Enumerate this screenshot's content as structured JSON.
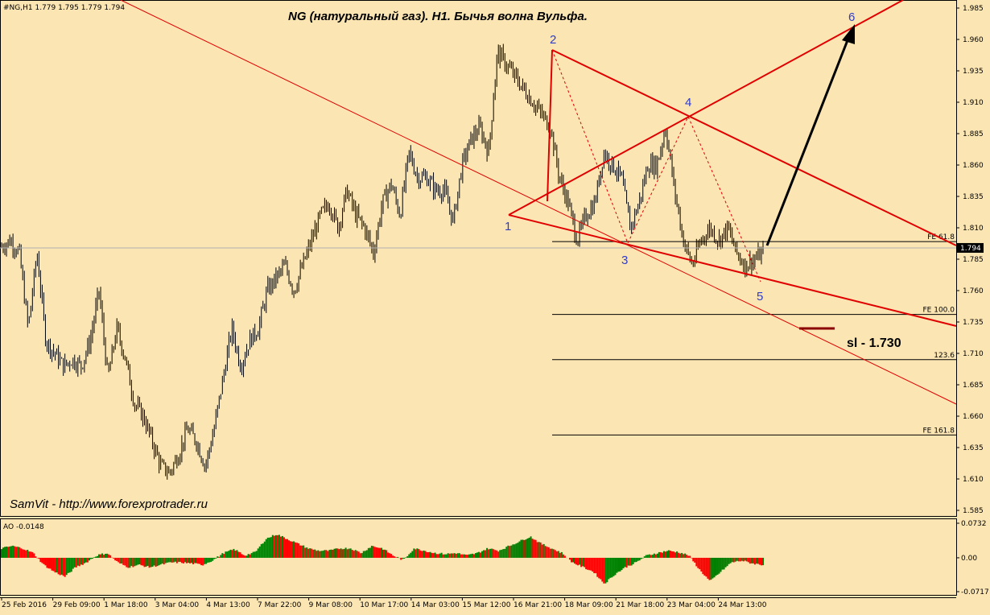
{
  "header": {
    "symbol_info": "#NG,H1  1.779 1.795 1.779 1.794",
    "title": "NG (натуральный газ). H1. Бычья волна Вульфа.",
    "watermark": "SamVit - http://www.forexprotrader.ru"
  },
  "colors": {
    "background": "#fbe5b3",
    "price_bars": "#000000",
    "trend_lines": "#e00000",
    "wave_labels": "#2f3cc7",
    "ao_up": "#008000",
    "ao_down": "#ff0000"
  },
  "chart_data": [
    {
      "type": "ohlc",
      "title": "NG (натуральный газ). H1. Бычья волна Вульфа.",
      "symbol": "#NG,H1",
      "ohlc_last": {
        "open": 1.779,
        "high": 1.795,
        "low": 1.779,
        "close": 1.794
      },
      "current_price": "1.794",
      "ylim": [
        1.575,
        1.995
      ],
      "y_ticks": [
        "1.985",
        "1.960",
        "1.935",
        "1.910",
        "1.885",
        "1.860",
        "1.835",
        "1.810",
        "1.785",
        "1.760",
        "1.735",
        "1.710",
        "1.685",
        "1.660",
        "1.635",
        "1.610",
        "1.585"
      ],
      "x_ticks": [
        "25 Feb 2016",
        "29 Feb 09:00",
        "1 Mar 18:00",
        "3 Mar 04:00",
        "4 Mar 13:00",
        "7 Mar 22:00",
        "9 Mar 08:00",
        "10 Mar 17:00",
        "14 Mar 03:00",
        "15 Mar 12:00",
        "16 Mar 21:00",
        "18 Mar 09:00",
        "21 Mar 18:00",
        "23 Mar 04:00",
        "24 Mar 13:00"
      ],
      "price_path": [
        1.795,
        1.8,
        1.79,
        1.73,
        1.79,
        1.72,
        1.71,
        1.7,
        1.705,
        1.7,
        1.72,
        1.76,
        1.69,
        1.73,
        1.705,
        1.67,
        1.66,
        1.64,
        1.62,
        1.615,
        1.63,
        1.65,
        1.64,
        1.62,
        1.65,
        1.69,
        1.73,
        1.7,
        1.72,
        1.73,
        1.76,
        1.77,
        1.78,
        1.76,
        1.78,
        1.8,
        1.82,
        1.83,
        1.81,
        1.84,
        1.82,
        1.81,
        1.79,
        1.83,
        1.845,
        1.82,
        1.87,
        1.85,
        1.85,
        1.84,
        1.84,
        1.815,
        1.86,
        1.88,
        1.89,
        1.87,
        1.95,
        1.94,
        1.93,
        1.92,
        1.91,
        1.9,
        1.89,
        1.85,
        1.83,
        1.8,
        1.82,
        1.83,
        1.87,
        1.86,
        1.85,
        1.81,
        1.83,
        1.86,
        1.86,
        1.89,
        1.84,
        1.8,
        1.78,
        1.8,
        1.81,
        1.8,
        1.81,
        1.79,
        1.78,
        1.785,
        1.79
      ],
      "wave_points": [
        {
          "label": "1",
          "price": 1.818
        },
        {
          "label": "2",
          "price": 1.95
        },
        {
          "label": "3",
          "price": 1.797
        },
        {
          "label": "4",
          "price": 1.898
        },
        {
          "label": "5",
          "price": 1.769
        },
        {
          "label": "6",
          "price": 1.968
        }
      ],
      "fib_levels": [
        {
          "label": "FE 61.8",
          "price": 1.799
        },
        {
          "label": "FE 100.0",
          "price": 1.741
        },
        {
          "label": "123.6",
          "price": 1.705
        },
        {
          "label": "FE 161.8",
          "price": 1.645
        }
      ],
      "annotation": "sl - 1.730",
      "stop_loss": 1.73
    },
    {
      "type": "bar",
      "name": "AO",
      "title": "AO -0.0148",
      "ylim": [
        -0.0717,
        0.0732
      ],
      "y_ticks": [
        "0.0732",
        "0.00",
        "-0.0717"
      ],
      "values": [
        0.02,
        0.025,
        0.02,
        0.01,
        -0.015,
        -0.03,
        -0.04,
        -0.02,
        -0.01,
        0.005,
        0.01,
        -0.01,
        -0.02,
        -0.015,
        -0.02,
        -0.015,
        -0.01,
        -0.01,
        -0.012,
        -0.015,
        -0.005,
        0.01,
        0.018,
        0.005,
        0.012,
        0.04,
        0.05,
        0.04,
        0.03,
        0.02,
        0.015,
        0.015,
        0.02,
        0.02,
        0.01,
        0.025,
        0.02,
        0.005,
        -0.005,
        0.02,
        0.015,
        0.01,
        0.008,
        0.01,
        0.005,
        0.01,
        0.02,
        0.015,
        0.025,
        0.035,
        0.045,
        0.03,
        0.02,
        0.01,
        -0.01,
        -0.02,
        -0.03,
        -0.055,
        -0.035,
        -0.02,
        -0.01,
        0.005,
        0.01,
        0.015,
        0.012,
        0.005,
        -0.025,
        -0.05,
        -0.03,
        -0.01,
        -0.006,
        -0.012,
        -0.015
      ]
    }
  ]
}
